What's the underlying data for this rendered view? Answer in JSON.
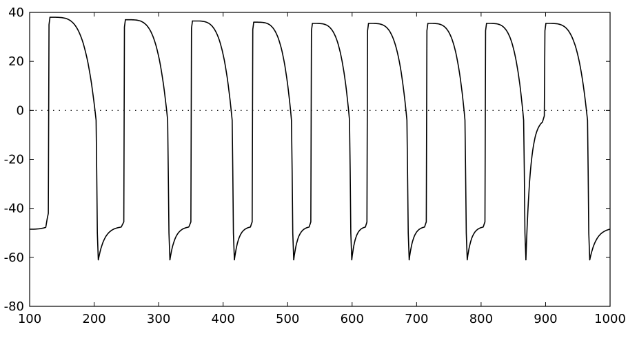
{
  "chart_data": {
    "type": "line",
    "xlim": [
      100,
      1000
    ],
    "ylim": [
      -80,
      40
    ],
    "x_ticks": [
      100,
      200,
      300,
      400,
      500,
      600,
      700,
      800,
      900,
      1000
    ],
    "y_ticks": [
      40,
      20,
      0,
      -20,
      -40,
      -60,
      -80
    ],
    "x_tick_labels": [
      "100",
      "200",
      "300",
      "400",
      "500",
      "600",
      "700",
      "800",
      "900",
      "1000"
    ],
    "y_tick_labels": [
      "40",
      "20",
      "0",
      "-20",
      "-40",
      "-60",
      "-80"
    ],
    "reference_line": {
      "y": 0,
      "style": "dotted"
    },
    "grid": false,
    "title": "",
    "xlabel": "",
    "ylabel": "",
    "series": [
      {
        "color": "#000000",
        "baseline": {
          "x_start": 100,
          "x_end": 125,
          "y": -48.5
        },
        "spikes": [
          {
            "x_up": 130,
            "peak": 38.0,
            "x_down": 205,
            "trough": -61.0,
            "pre_upstroke": -46.0
          },
          {
            "x_up": 247,
            "peak": 37.0,
            "x_down": 316,
            "trough": -61.0,
            "pre_upstroke": -46.5
          },
          {
            "x_up": 351,
            "peak": 36.5,
            "x_down": 416,
            "trough": -61.0,
            "pre_upstroke": -46.5
          },
          {
            "x_up": 446,
            "peak": 36.0,
            "x_down": 508,
            "trough": -61.0,
            "pre_upstroke": -46.5
          },
          {
            "x_up": 537,
            "peak": 35.5,
            "x_down": 598,
            "trough": -61.0,
            "pre_upstroke": -46.5
          },
          {
            "x_up": 624,
            "peak": 35.5,
            "x_down": 687,
            "trough": -61.0,
            "pre_upstroke": -46.5
          },
          {
            "x_up": 716,
            "peak": 35.5,
            "x_down": 777,
            "trough": -61.0,
            "pre_upstroke": -46.5
          },
          {
            "x_up": 807,
            "peak": 35.5,
            "x_down": 868,
            "trough": -61.0,
            "pre_upstroke": -46.5
          },
          {
            "x_up": 899,
            "peak": 35.5,
            "x_down": 967,
            "trough": -61.0,
            "pre_upstroke": null
          }
        ],
        "end": {
          "x": 1000,
          "y": -48.5
        }
      }
    ]
  }
}
